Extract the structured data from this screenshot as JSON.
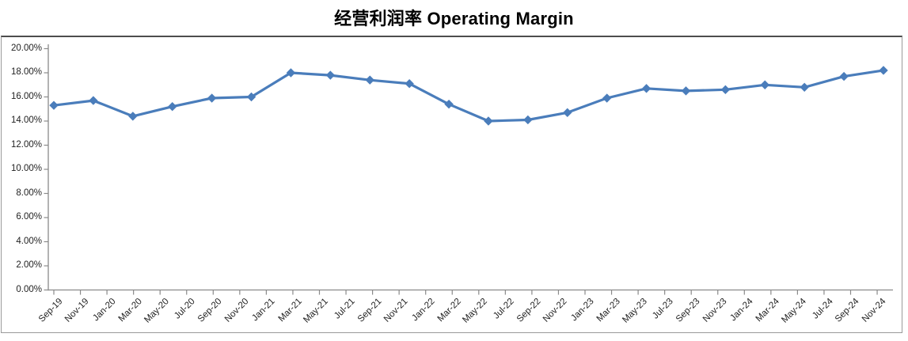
{
  "title": "经营利润率 Operating Margin",
  "chart_data": {
    "type": "line",
    "title": "经营利润率 Operating Margin",
    "legend": "none",
    "grid": "off",
    "marker": "diamond",
    "line_color": "#4A7DBB",
    "axis_color": "#8a8a8a",
    "label_color": "#1f1f1f",
    "x_axis": {
      "labels": [
        "Sep-19",
        "Nov-19",
        "Jan-20",
        "Mar-20",
        "May-20",
        "Jul-20",
        "Sep-20",
        "Nov-20",
        "Jan-21",
        "Mar-21",
        "May-21",
        "Jul-21",
        "Sep-21",
        "Nov-21",
        "Jan-22",
        "Mar-22",
        "May-22",
        "Jul-22",
        "Sep-22",
        "Nov-22",
        "Jan-23",
        "Mar-23",
        "May-23",
        "Jul-23",
        "Sep-23",
        "Nov-23",
        "Jan-24",
        "Mar-24",
        "May-24",
        "Jul-24",
        "Sep-24",
        "Nov-24"
      ],
      "label_rotation_deg": -45,
      "note": "date axis labeled every 2 months; data points are quarterly"
    },
    "y_axis": {
      "min": 0,
      "max": 20,
      "step": 2,
      "format": "percent",
      "tick_labels": [
        "20.00%",
        "18.00%",
        "16.00%",
        "14.00%",
        "12.00%",
        "10.00%",
        "8.00%",
        "6.00%",
        "4.00%",
        "2.00%",
        "0.00%"
      ]
    },
    "series": [
      {
        "name": "Operating Margin",
        "points": [
          {
            "period": "Sep-19",
            "value": 15.3
          },
          {
            "period": "Dec-19",
            "value": 15.7
          },
          {
            "period": "Mar-20",
            "value": 14.4
          },
          {
            "period": "Jun-20",
            "value": 15.2
          },
          {
            "period": "Sep-20",
            "value": 15.9
          },
          {
            "period": "Dec-20",
            "value": 16.0
          },
          {
            "period": "Mar-21",
            "value": 18.0
          },
          {
            "period": "Jun-21",
            "value": 17.8
          },
          {
            "period": "Sep-21",
            "value": 17.4
          },
          {
            "period": "Dec-21",
            "value": 17.1
          },
          {
            "period": "Mar-22",
            "value": 15.4
          },
          {
            "period": "Jun-22",
            "value": 14.0
          },
          {
            "period": "Sep-22",
            "value": 14.1
          },
          {
            "period": "Dec-22",
            "value": 14.7
          },
          {
            "period": "Mar-23",
            "value": 15.9
          },
          {
            "period": "Jun-23",
            "value": 16.7
          },
          {
            "period": "Sep-23",
            "value": 16.5
          },
          {
            "period": "Dec-23",
            "value": 16.6
          },
          {
            "period": "Mar-24",
            "value": 17.0
          },
          {
            "period": "Jun-24",
            "value": 16.8
          },
          {
            "period": "Sep-24",
            "value": 17.7
          },
          {
            "period": "Dec-24",
            "value": 18.2
          }
        ]
      }
    ]
  }
}
